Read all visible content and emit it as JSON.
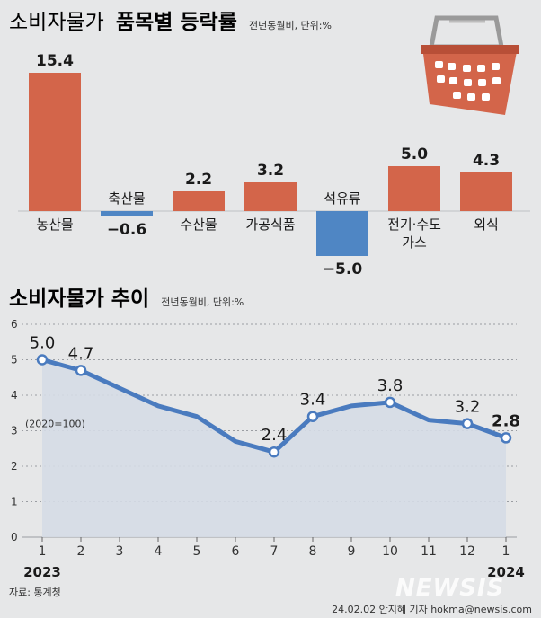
{
  "header1": {
    "title_plain": "소비자물가",
    "title_bold": "품목별 등락률",
    "unit_note": "전년동월비, 단위:%"
  },
  "header2": {
    "title": "소비자물가 추이",
    "unit_note": "전년동월비, 단위:%"
  },
  "colors": {
    "background": "#e6e7e8",
    "positive_bar": "#d3654a",
    "negative_bar": "#4f86c4",
    "line": "#4a7bbf",
    "area": "#d5dbe6"
  },
  "chart_data": [
    {
      "type": "bar",
      "title": "소비자물가 품목별 등락률",
      "unit": "전년동월비, 단위:%",
      "categories": [
        {
          "label": "농산물",
          "label_lines": [
            "농산물"
          ],
          "value": 15.4,
          "value_label": "15.4"
        },
        {
          "label": "축산물",
          "label_lines": [
            "축산물"
          ],
          "value": -0.6,
          "value_label": "−0.6"
        },
        {
          "label": "수산물",
          "label_lines": [
            "수산물"
          ],
          "value": 2.2,
          "value_label": "2.2"
        },
        {
          "label": "가공식품",
          "label_lines": [
            "가공식품"
          ],
          "value": 3.2,
          "value_label": "3.2"
        },
        {
          "label": "석유류",
          "label_lines": [
            "석유류"
          ],
          "value": -5.0,
          "value_label": "−5.0"
        },
        {
          "label": "전기·수도 가스",
          "label_lines": [
            "전기·수도",
            "가스"
          ],
          "value": 5.0,
          "value_label": "5.0"
        },
        {
          "label": "외식",
          "label_lines": [
            "외식"
          ],
          "value": 4.3,
          "value_label": "4.3"
        }
      ]
    },
    {
      "type": "line",
      "title": "소비자물가 추이",
      "unit": "전년동월비, 단위:%",
      "base_note": "(2020=100)",
      "ylim": [
        0,
        6
      ],
      "yticks": [
        0,
        1,
        2,
        3,
        4,
        5,
        6
      ],
      "x": [
        "1",
        "2",
        "3",
        "4",
        "5",
        "6",
        "7",
        "8",
        "9",
        "10",
        "11",
        "12",
        "1"
      ],
      "year_labels": [
        {
          "index": 0,
          "text": "2023"
        },
        {
          "index": 12,
          "text": "2024"
        }
      ],
      "values": [
        5.0,
        4.7,
        4.2,
        3.7,
        3.4,
        2.7,
        2.4,
        3.4,
        3.7,
        3.8,
        3.3,
        3.2,
        2.8
      ],
      "labeled_points": [
        {
          "index": 0,
          "text": "5.0"
        },
        {
          "index": 1,
          "text": "4.7"
        },
        {
          "index": 6,
          "text": "2.4"
        },
        {
          "index": 7,
          "text": "3.4"
        },
        {
          "index": 9,
          "text": "3.8"
        },
        {
          "index": 11,
          "text": "3.2"
        },
        {
          "index": 12,
          "text": "2.8",
          "emphasis": true
        }
      ]
    }
  ],
  "footer": {
    "source": "자료: 통계청",
    "credit": "24.02.02 안지혜 기자 hokma@newsis.com",
    "logo_text": "NEWSIS"
  }
}
